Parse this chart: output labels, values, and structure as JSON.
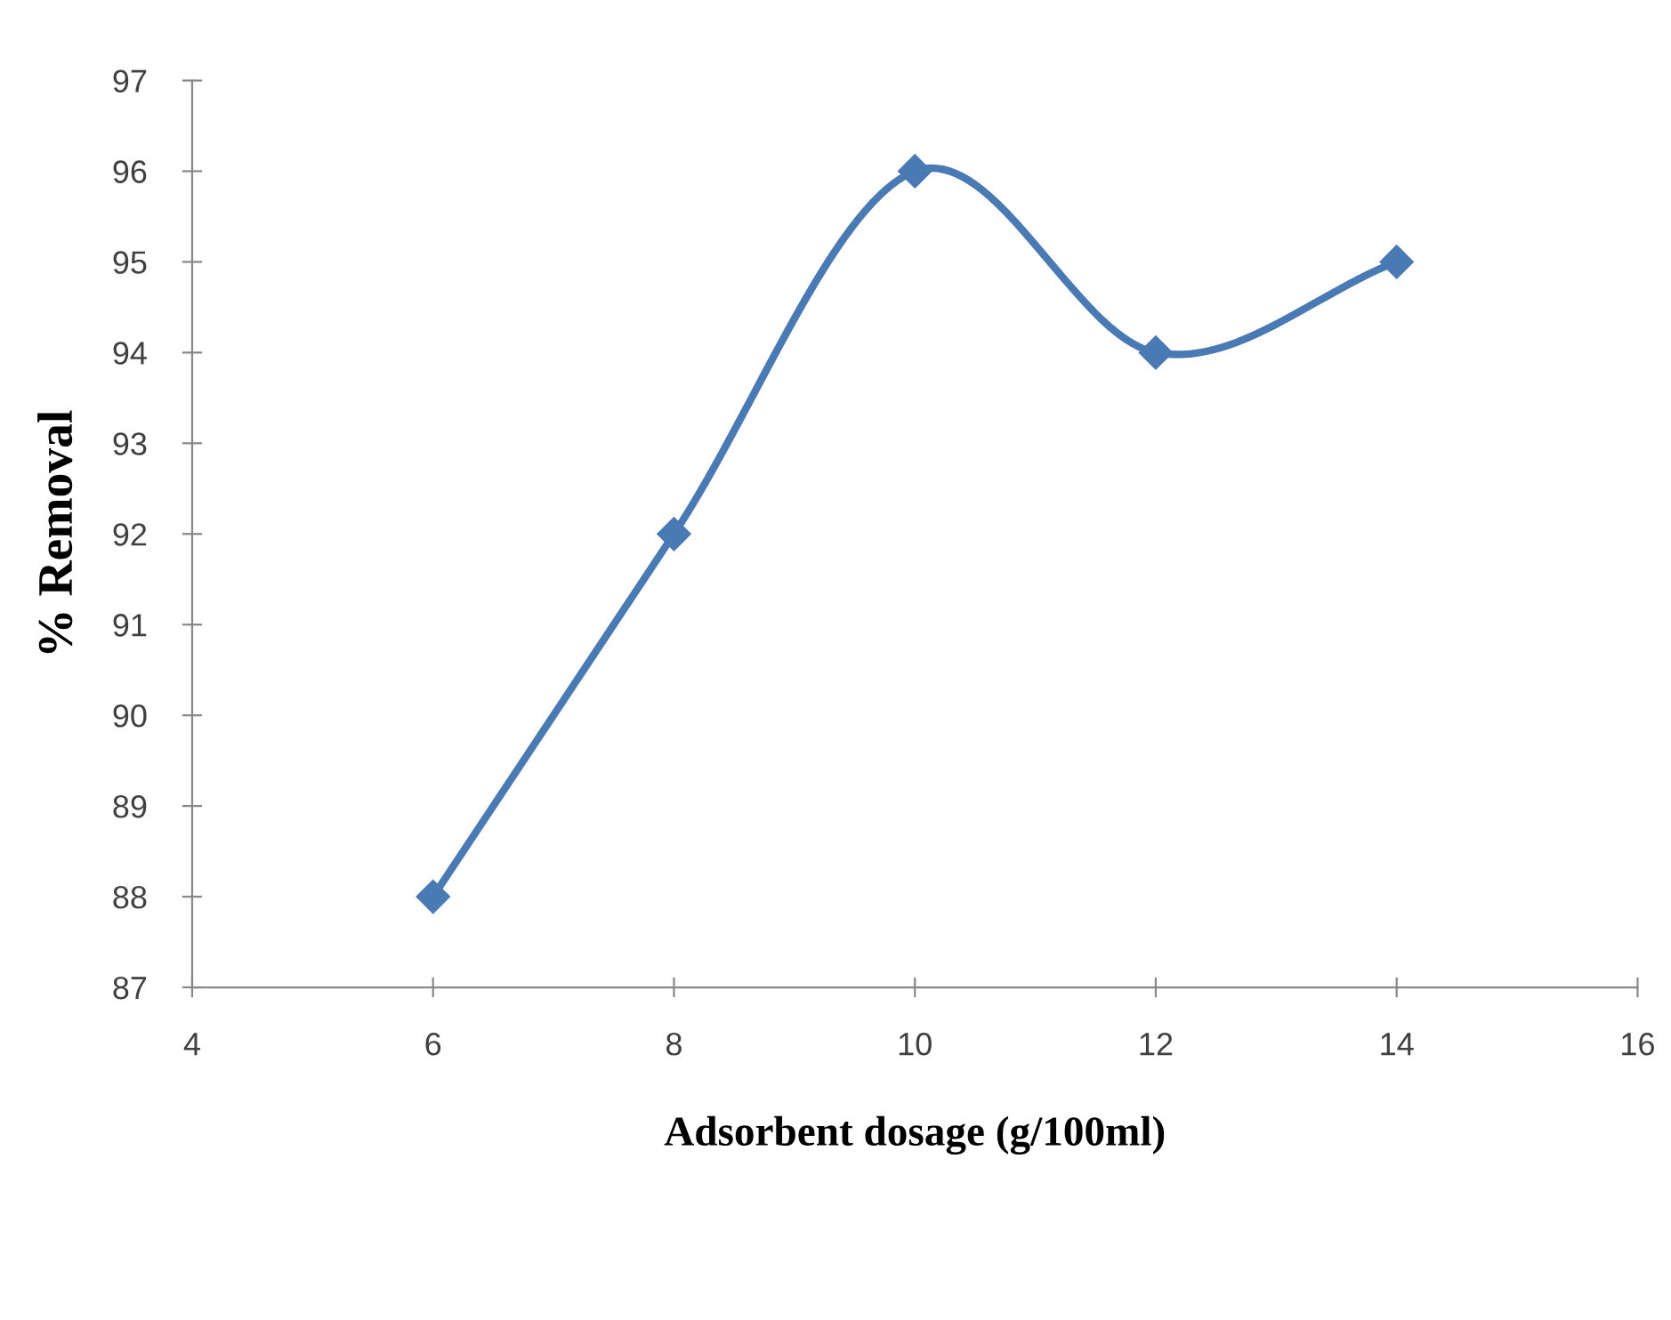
{
  "chart_data": {
    "type": "line",
    "xlabel": "Adsorbent dosage (g/100ml)",
    "ylabel": "% Removal",
    "x": [
      6,
      8,
      10,
      12,
      14
    ],
    "series": [
      {
        "color": "#4a7ab4",
        "values": [
          88,
          92,
          96,
          94,
          95
        ]
      }
    ],
    "xlim": [
      4,
      16
    ],
    "ylim": [
      87,
      97
    ],
    "xticks": [
      4,
      6,
      8,
      10,
      12,
      14,
      16
    ],
    "yticks": [
      87,
      88,
      89,
      90,
      91,
      92,
      93,
      94,
      95,
      96,
      97
    ],
    "grid": false,
    "marker": "diamond",
    "line_style": "solid"
  }
}
